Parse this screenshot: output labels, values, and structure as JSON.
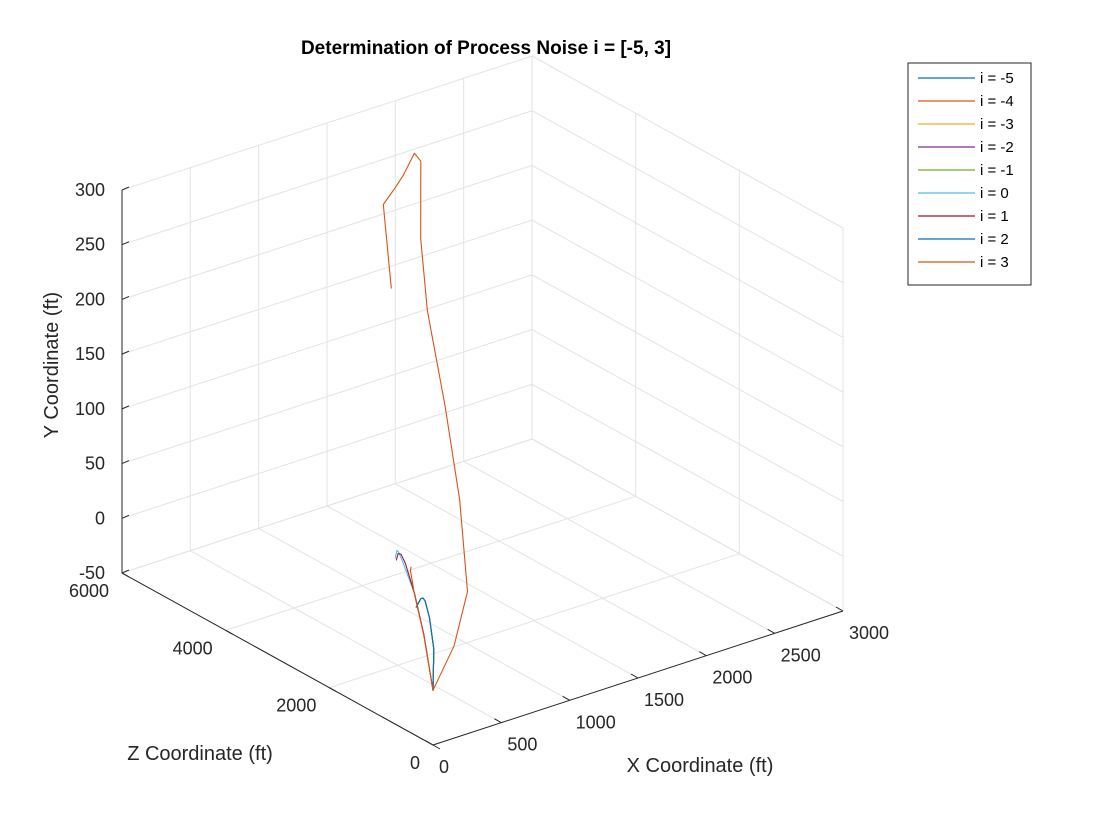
{
  "chart_data": {
    "type": "line",
    "projection": "3d",
    "title": "Determination of Process Noise i = [-5, 3]",
    "xlabel": "X Coordinate (ft)",
    "ylabel": "Z Coordinate (ft)",
    "zlabel": "Y Coordinate (ft)",
    "xlim": [
      0,
      3000
    ],
    "ylim": [
      0,
      6000
    ],
    "zlim": [
      -50,
      300
    ],
    "xticks": [
      0,
      500,
      1000,
      1500,
      2000,
      2500,
      3000
    ],
    "yticks": [
      0,
      2000,
      4000,
      6000
    ],
    "zticks": [
      -50,
      0,
      50,
      100,
      150,
      200,
      250,
      300
    ],
    "grid": true,
    "legend_position": "top-right",
    "series": [
      {
        "name": "i = -5",
        "color": "#0072BD",
        "x": [
          0,
          120,
          240,
          360,
          420,
          480,
          560
        ],
        "y": [
          0,
          300,
          700,
          1100,
          1300,
          1500,
          1800
        ],
        "z": [
          0,
          25,
          38,
          38,
          33,
          25,
          6
        ]
      },
      {
        "name": "i = -4",
        "color": "#D95319",
        "x": [
          0,
          230,
          480,
          840,
          1150,
          1400,
          1560,
          1750,
          1760,
          1640,
          1540,
          1400,
          1060
        ],
        "y": [
          0,
          200,
          600,
          1700,
          2800,
          3800,
          4350,
          4850,
          5000,
          4900,
          4800,
          4650,
          3600
        ],
        "z": [
          0,
          26,
          55,
          95,
          140,
          190,
          235,
          285,
          288,
          275,
          270,
          265,
          230
        ]
      },
      {
        "name": "i = -3",
        "color": "#EDB120",
        "x": [
          0,
          120,
          240,
          360,
          420,
          480,
          560
        ],
        "y": [
          0,
          300,
          700,
          1100,
          1300,
          1500,
          1800
        ],
        "z": [
          0,
          25,
          38,
          38,
          33,
          25,
          6
        ]
      },
      {
        "name": "i = -2",
        "color": "#7E2F8E",
        "x": [
          0,
          120,
          240,
          360,
          420,
          480,
          560
        ],
        "y": [
          0,
          300,
          700,
          1100,
          1300,
          1500,
          1800
        ],
        "z": [
          0,
          25,
          38,
          38,
          33,
          25,
          6
        ]
      },
      {
        "name": "i = -1",
        "color": "#77AC30",
        "x": [
          0,
          120,
          240,
          360,
          420,
          480,
          560
        ],
        "y": [
          0,
          300,
          700,
          1100,
          1300,
          1500,
          1800
        ],
        "z": [
          0,
          25,
          38,
          38,
          33,
          25,
          6
        ]
      },
      {
        "name": "i = 0",
        "color": "#4DBEEE",
        "x": [
          0,
          160,
          320,
          500,
          620,
          760,
          880
        ],
        "y": [
          0,
          600,
          1200,
          1900,
          2300,
          2700,
          3050
        ],
        "z": [
          0,
          29,
          44,
          47,
          41,
          26,
          5
        ]
      },
      {
        "name": "i = 1",
        "color": "#A2142F",
        "x": [
          0,
          160,
          320,
          500,
          620,
          750,
          870
        ],
        "y": [
          0,
          600,
          1200,
          1850,
          2250,
          2650,
          3000
        ],
        "z": [
          0,
          29,
          44,
          47,
          40,
          25,
          5
        ]
      },
      {
        "name": "i = 2",
        "color": "#0072BD",
        "x": [
          0,
          120,
          240,
          360,
          420,
          480,
          560
        ],
        "y": [
          0,
          300,
          700,
          1100,
          1300,
          1500,
          1800
        ],
        "z": [
          0,
          25,
          38,
          38,
          33,
          25,
          6
        ]
      },
      {
        "name": "i = 3",
        "color": "#D95319",
        "x": [
          0,
          160,
          320,
          480,
          560
        ],
        "y": [
          0,
          600,
          1200,
          1700,
          1900
        ],
        "z": [
          0,
          28,
          43,
          45,
          40
        ]
      }
    ]
  }
}
